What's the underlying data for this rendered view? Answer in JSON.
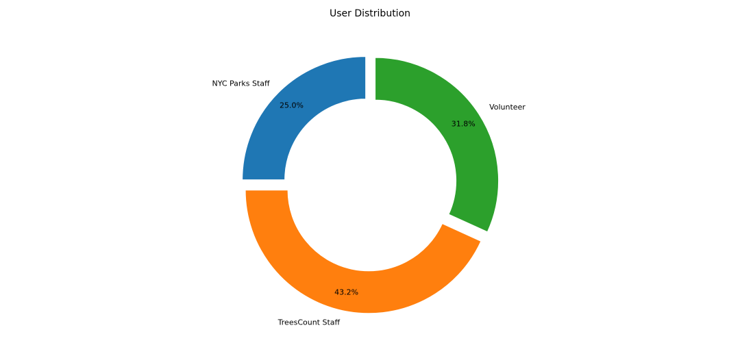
{
  "chart_data": {
    "type": "pie",
    "title": "User Distribution",
    "donut": true,
    "categories": [
      "NYC Parks Staff",
      "TreesCount Staff",
      "Volunteer"
    ],
    "values": [
      25.0,
      43.2,
      31.8
    ],
    "percent_labels": [
      "25.0%",
      "43.2%",
      "31.8%"
    ],
    "colors": [
      "#1f77b4",
      "#ff7f0e",
      "#2ca02c"
    ],
    "start_angle_deg": 90,
    "direction": "counterclockwise",
    "exploded": true,
    "legend": "none"
  }
}
